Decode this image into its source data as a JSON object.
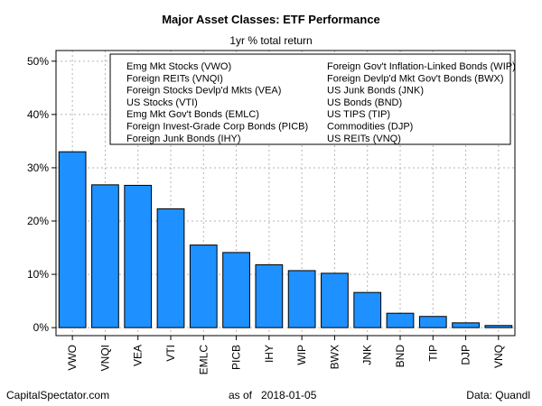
{
  "chart_data": {
    "type": "bar",
    "title": "Major Asset Classes: ETF Performance",
    "subtitle": "1yr % total return",
    "categories": [
      "VWO",
      "VNQI",
      "VEA",
      "VTI",
      "EMLC",
      "PICB",
      "IHY",
      "WIP",
      "BWX",
      "JNK",
      "BND",
      "TIP",
      "DJP",
      "VNQ"
    ],
    "values": [
      33.0,
      26.8,
      26.7,
      22.3,
      15.5,
      14.1,
      11.8,
      10.7,
      10.2,
      6.6,
      2.7,
      2.1,
      0.9,
      0.4
    ],
    "ylim": [
      -1.5,
      52
    ],
    "yticks": [
      0,
      10,
      20,
      30,
      40,
      50
    ],
    "ytick_labels": [
      "0%",
      "10%",
      "20%",
      "30%",
      "40%",
      "50%"
    ],
    "bar_color": "#1e90ff",
    "grid": true,
    "legend_placement": "top",
    "legend_left": [
      "Emg Mkt Stocks (VWO)",
      "Foreign REITs (VNQI)",
      "Foreign Stocks Devlp'd Mkts (VEA)",
      "US Stocks (VTI)",
      "Emg Mkt Gov't Bonds (EMLC)",
      "Foreign Invest-Grade Corp Bonds (PICB)",
      "Foreign Junk Bonds (IHY)"
    ],
    "legend_right": [
      "Foreign Gov't Inflation-Linked Bonds (WIP)",
      "Foreign Devlp'd Mkt Gov't Bonds (BWX)",
      "US Junk Bonds (JNK)",
      "US Bonds (BND)",
      "US TIPS (TIP)",
      "Commodities (DJP)",
      "US REITs (VNQ)"
    ]
  },
  "footer": {
    "left": "CapitalSpectator.com",
    "mid": "as of   2018-01-05",
    "right": "Data: Quandl"
  }
}
